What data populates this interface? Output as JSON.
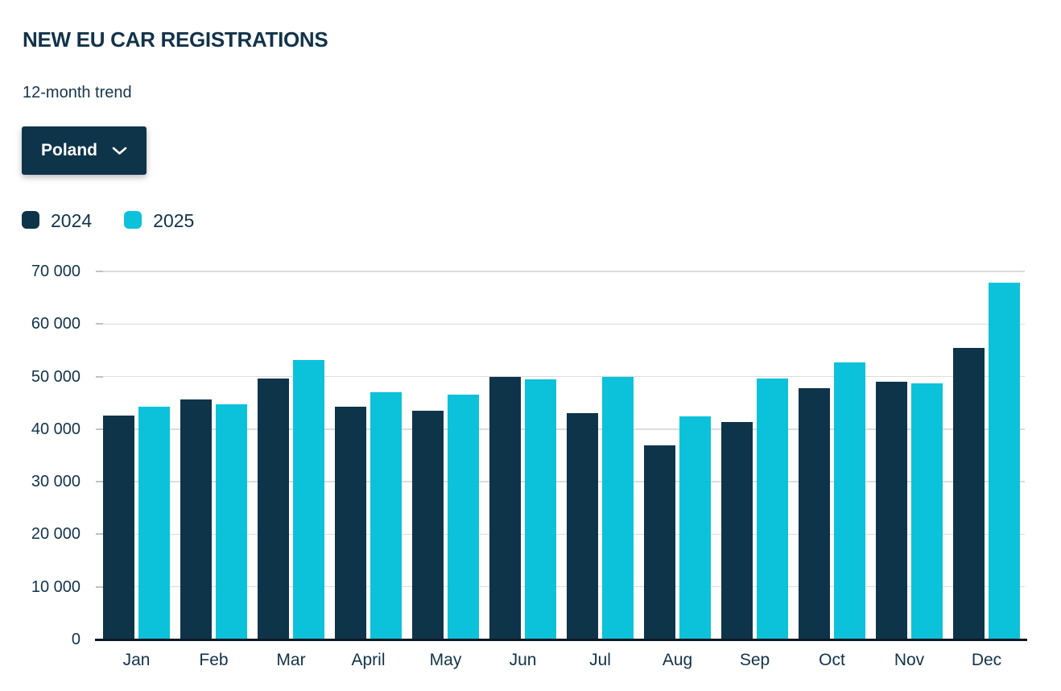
{
  "header": {
    "title": "NEW EU CAR REGISTRATIONS",
    "subtitle": "12-month trend"
  },
  "filter": {
    "selected_country": "Poland",
    "chevron_icon": "chevron-down"
  },
  "colors": {
    "series_2024": "#0e344a",
    "series_2025": "#0cc2da",
    "text": "#12334a",
    "gridline": "#dcdcdc",
    "tick": "#bfc3c6",
    "axis_line": "#0d1a24",
    "background": "#ffffff"
  },
  "chart_data": {
    "type": "bar",
    "title": "NEW EU CAR REGISTRATIONS",
    "subtitle": "12-month trend",
    "categories": [
      "Jan",
      "Feb",
      "Mar",
      "April",
      "May",
      "Jun",
      "Jul",
      "Aug",
      "Sep",
      "Oct",
      "Nov",
      "Dec"
    ],
    "series": [
      {
        "name": "2024",
        "color": "#0e344a",
        "values": [
          42600,
          45700,
          49600,
          44200,
          43500,
          50000,
          43000,
          36900,
          41400,
          47800,
          49000,
          55500
        ]
      },
      {
        "name": "2025",
        "color": "#0cc2da",
        "values": [
          44200,
          44800,
          53100,
          47000,
          46600,
          49400,
          50000,
          42400,
          49700,
          52700,
          48700,
          67800
        ]
      }
    ],
    "xlabel": "",
    "ylabel": "",
    "ylim": [
      0,
      70000
    ],
    "ytick_step": 10000,
    "ytick_labels": [
      "0",
      "10 000",
      "20 000",
      "30 000",
      "40 000",
      "50 000",
      "60 000",
      "70 000"
    ],
    "grid": true,
    "legend_position": "top-left"
  }
}
